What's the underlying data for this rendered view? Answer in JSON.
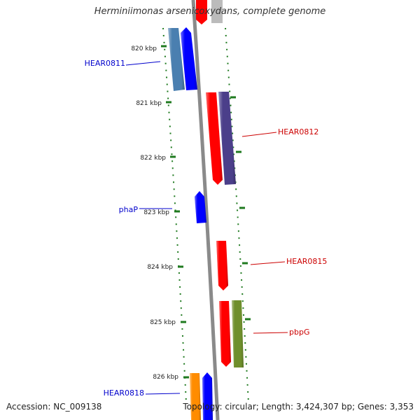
{
  "header": {
    "title": "Herminiimonas arsenicoxydans, complete genome"
  },
  "footer": {
    "accession": "Accession: NC_009138",
    "stats": "Topology: circular; Length: 3,424,307 bp; Genes: 3,353"
  },
  "ticks": [
    "820 kbp",
    "821 kbp",
    "822 kbp",
    "823 kbp",
    "824 kbp",
    "825 kbp",
    "826 kbp"
  ],
  "colors": {
    "backbone": "#8a8a8a",
    "tick_mark": "#1f7a1f",
    "label_plus": "#0000cc",
    "label_minus": "#cc0000",
    "gene_blue": "#0000ff",
    "gene_steel": "#4a7fb0",
    "gene_red": "#ff0000",
    "gene_purple": "#4b3f8a",
    "gene_green": "#6f8f2c",
    "gene_orange": "#ff8c00",
    "gene_grey": "#bbbbbb"
  },
  "labels": [
    {
      "text": "HEAR0811",
      "strand": "plus"
    },
    {
      "text": "HEAR0812",
      "strand": "minus"
    },
    {
      "text": "phaP",
      "strand": "plus"
    },
    {
      "text": "HEAR0815",
      "strand": "minus"
    },
    {
      "text": "pbpG",
      "strand": "minus"
    },
    {
      "text": "HEAR0818",
      "strand": "plus"
    }
  ]
}
